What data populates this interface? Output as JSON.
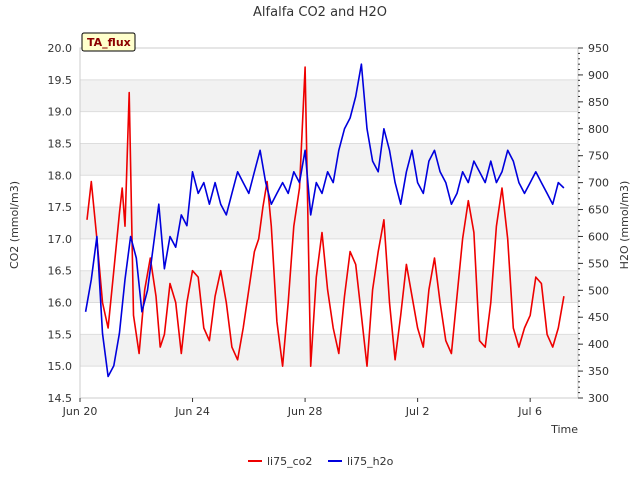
{
  "chart_data": {
    "type": "line",
    "title": "Alfalfa CO2 and H2O",
    "badge": "TA_flux",
    "xlabel": "Time",
    "ylabel_left": "CO2 (mmol/m3)",
    "ylabel_right": "H2O (mmol/m3)",
    "x_ticks": [
      "Jun 20",
      "Jun 24",
      "Jun 28",
      "Jul 2",
      "Jul 6"
    ],
    "x_tick_days": [
      0,
      4,
      8,
      12,
      16
    ],
    "x_range_days": [
      0,
      17.7
    ],
    "y_left_range": [
      14.5,
      20.0
    ],
    "y_left_ticks": [
      "14.5",
      "15.0",
      "15.5",
      "16.0",
      "16.5",
      "17.0",
      "17.5",
      "18.0",
      "18.5",
      "19.0",
      "19.5",
      "20.0"
    ],
    "y_right_range": [
      300,
      950
    ],
    "y_right_ticks": [
      "300",
      "350",
      "400",
      "450",
      "500",
      "550",
      "600",
      "650",
      "700",
      "750",
      "800",
      "850",
      "900",
      "950"
    ],
    "grid": true,
    "legend_position": "bottom",
    "series": [
      {
        "name": "li75_co2",
        "axis": "left",
        "color": "#ee0000",
        "x": [
          0.25,
          0.4,
          0.6,
          0.8,
          1.0,
          1.2,
          1.4,
          1.5,
          1.6,
          1.75,
          1.9,
          2.1,
          2.3,
          2.5,
          2.7,
          2.85,
          3.0,
          3.2,
          3.4,
          3.6,
          3.8,
          4.0,
          4.2,
          4.4,
          4.6,
          4.8,
          5.0,
          5.2,
          5.4,
          5.6,
          5.8,
          6.0,
          6.2,
          6.35,
          6.5,
          6.65,
          6.8,
          7.0,
          7.2,
          7.4,
          7.6,
          7.8,
          8.0,
          8.2,
          8.4,
          8.6,
          8.8,
          9.0,
          9.2,
          9.4,
          9.6,
          9.8,
          10.0,
          10.2,
          10.4,
          10.6,
          10.8,
          11.0,
          11.2,
          11.4,
          11.6,
          11.8,
          12.0,
          12.2,
          12.4,
          12.6,
          12.8,
          13.0,
          13.2,
          13.4,
          13.6,
          13.8,
          14.0,
          14.2,
          14.4,
          14.6,
          14.8,
          15.0,
          15.2,
          15.4,
          15.6,
          15.8,
          16.0,
          16.2,
          16.4,
          16.6,
          16.8,
          17.0,
          17.2
        ],
        "y": [
          17.3,
          17.9,
          17.0,
          16.0,
          15.6,
          16.5,
          17.4,
          17.8,
          17.2,
          19.3,
          15.8,
          15.2,
          16.2,
          16.7,
          16.1,
          15.3,
          15.5,
          16.3,
          16.0,
          15.2,
          16.0,
          16.5,
          16.4,
          15.6,
          15.4,
          16.1,
          16.5,
          16.0,
          15.3,
          15.1,
          15.6,
          16.2,
          16.8,
          17.0,
          17.5,
          17.9,
          17.2,
          15.7,
          15.0,
          16.0,
          17.2,
          17.8,
          19.7,
          15.0,
          16.4,
          17.1,
          16.2,
          15.6,
          15.2,
          16.1,
          16.8,
          16.6,
          15.8,
          15.0,
          16.2,
          16.8,
          17.3,
          16.0,
          15.1,
          15.8,
          16.6,
          16.1,
          15.6,
          15.3,
          16.2,
          16.7,
          16.0,
          15.4,
          15.2,
          16.1,
          17.0,
          17.6,
          17.1,
          15.4,
          15.3,
          16.0,
          17.2,
          17.8,
          17.0,
          15.6,
          15.3,
          15.6,
          15.8,
          16.4,
          16.3,
          15.5,
          15.3,
          15.6,
          16.1
        ],
        "values_note": "approx"
      },
      {
        "name": "li75_h2o",
        "axis": "right",
        "color": "#0000dd",
        "x": [
          0.2,
          0.4,
          0.6,
          0.8,
          1.0,
          1.2,
          1.4,
          1.6,
          1.8,
          2.0,
          2.2,
          2.4,
          2.6,
          2.8,
          3.0,
          3.2,
          3.4,
          3.6,
          3.8,
          4.0,
          4.2,
          4.4,
          4.6,
          4.8,
          5.0,
          5.2,
          5.4,
          5.6,
          5.8,
          6.0,
          6.2,
          6.4,
          6.6,
          6.8,
          7.0,
          7.2,
          7.4,
          7.6,
          7.8,
          8.0,
          8.2,
          8.4,
          8.6,
          8.8,
          9.0,
          9.2,
          9.4,
          9.6,
          9.8,
          10.0,
          10.2,
          10.4,
          10.6,
          10.8,
          11.0,
          11.2,
          11.4,
          11.6,
          11.8,
          12.0,
          12.2,
          12.4,
          12.6,
          12.8,
          13.0,
          13.2,
          13.4,
          13.6,
          13.8,
          14.0,
          14.2,
          14.4,
          14.6,
          14.8,
          15.0,
          15.2,
          15.4,
          15.6,
          15.8,
          16.0,
          16.2,
          16.4,
          16.6,
          16.8,
          17.0,
          17.2
        ],
        "y": [
          460,
          520,
          600,
          420,
          340,
          360,
          420,
          520,
          600,
          560,
          460,
          500,
          580,
          660,
          540,
          600,
          580,
          640,
          620,
          720,
          680,
          700,
          660,
          700,
          660,
          640,
          680,
          720,
          700,
          680,
          720,
          760,
          700,
          660,
          680,
          700,
          680,
          720,
          700,
          760,
          640,
          700,
          680,
          720,
          700,
          760,
          800,
          820,
          860,
          920,
          800,
          740,
          720,
          800,
          760,
          700,
          660,
          720,
          760,
          700,
          680,
          740,
          760,
          720,
          700,
          660,
          680,
          720,
          700,
          740,
          720,
          700,
          740,
          700,
          720,
          760,
          740,
          700,
          680,
          700,
          720,
          700,
          680,
          660,
          700,
          690
        ],
        "values_note": "approx"
      }
    ]
  }
}
